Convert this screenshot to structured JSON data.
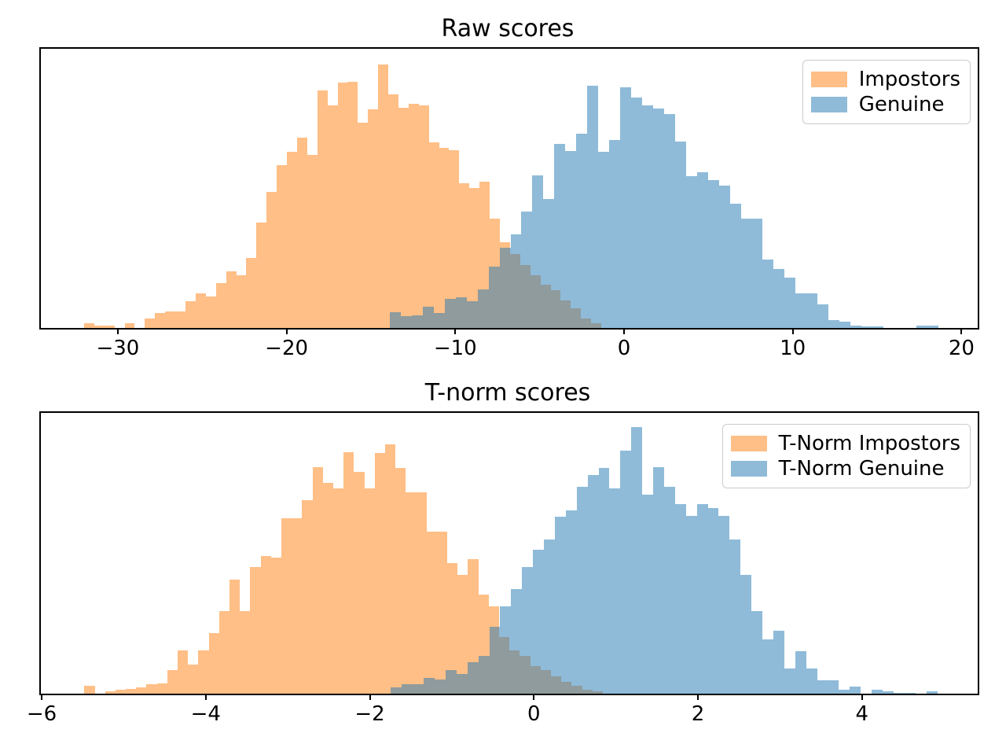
{
  "figure": {
    "background": "#ffffff",
    "spine_color": "#000000",
    "overlap_color_observed": "#8f9b9d",
    "note": "No y-axis ticks are shown; bar heights are stored as fraction of axes height"
  },
  "chart_data": [
    {
      "type": "bar",
      "subtype": "overlapping-histogram",
      "title": "Raw scores",
      "xlabel": "",
      "ylabel": "",
      "xlim": [
        -34.56,
        20.96
      ],
      "grid": false,
      "legend_position": "upper right",
      "xtick_values": [
        -30,
        -20,
        -10,
        0,
        10,
        20
      ],
      "xtick_labels": [
        "−30",
        "−20",
        "−10",
        "0",
        "10",
        "20"
      ],
      "legend": [
        {
          "label": "Impostors",
          "swatch_hex": "#ffbf87"
        },
        {
          "label": "Genuine",
          "swatch_hex": "#8fbbd9"
        }
      ],
      "series": [
        {
          "name": "Impostors",
          "color_hex": "#ff7f0e",
          "alpha": 0.5,
          "fill_rgba": "rgba(255,127,14,0.5)",
          "bin_start": -32.0,
          "bin_width": 0.601,
          "heights_frac": [
            0.017,
            0.008,
            0.008,
            0,
            0.017,
            0,
            0.034,
            0.053,
            0.059,
            0.059,
            0.095,
            0.123,
            0.112,
            0.16,
            0.204,
            0.19,
            0.252,
            0.378,
            0.487,
            0.583,
            0.63,
            0.683,
            0.619,
            0.852,
            0.798,
            0.88,
            0.882,
            0.734,
            0.784,
            0.944,
            0.838,
            0.79,
            0.804,
            0.798,
            0.664,
            0.644,
            0.636,
            0.518,
            0.501,
            0.524,
            0.392,
            0.308,
            0.266,
            0.224,
            0.19,
            0.154,
            0.134,
            0.098,
            0.07,
            0.034,
            0.017
          ]
        },
        {
          "name": "Genuine",
          "color_hex": "#1f77b4",
          "alpha": 0.5,
          "fill_rgba": "rgba(31,119,180,0.5)",
          "bin_start": -13.88,
          "bin_width": 0.65,
          "heights_frac": [
            0.056,
            0.042,
            0.045,
            0.076,
            0.053,
            0.104,
            0.109,
            0.095,
            0.137,
            0.221,
            0.286,
            0.336,
            0.417,
            0.546,
            0.462,
            0.658,
            0.633,
            0.695,
            0.868,
            0.63,
            0.672,
            0.863,
            0.824,
            0.798,
            0.787,
            0.765,
            0.669,
            0.543,
            0.557,
            0.529,
            0.51,
            0.445,
            0.392,
            0.392,
            0.244,
            0.21,
            0.179,
            0.123,
            0.123,
            0.084,
            0.028,
            0.022,
            0.008,
            0.006,
            0.006,
            0,
            0,
            0,
            0.008,
            0.008
          ]
        }
      ]
    },
    {
      "type": "bar",
      "subtype": "overlapping-histogram",
      "title": "T-norm scores",
      "xlabel": "",
      "ylabel": "",
      "xlim": [
        -6.01,
        5.41
      ],
      "grid": false,
      "legend_position": "upper right",
      "xtick_values": [
        -6,
        -4,
        -2,
        0,
        2,
        4
      ],
      "xtick_labels": [
        "−6",
        "−4",
        "−2",
        "0",
        "2",
        "4"
      ],
      "legend": [
        {
          "label": "T-Norm Impostors",
          "swatch_hex": "#ffbf87"
        },
        {
          "label": "T-Norm Genuine",
          "swatch_hex": "#8fbbd9"
        }
      ],
      "series": [
        {
          "name": "T-Norm Impostors",
          "color_hex": "#ff7f0e",
          "alpha": 0.5,
          "fill_rgba": "rgba(255,127,14,0.5)",
          "bin_start": -5.48,
          "bin_width": 0.1264,
          "heights_frac": [
            0.028,
            0,
            0.008,
            0.014,
            0.017,
            0.023,
            0.034,
            0.037,
            0.085,
            0.155,
            0.104,
            0.155,
            0.217,
            0.293,
            0.406,
            0.293,
            0.451,
            0.49,
            0.485,
            0.625,
            0.625,
            0.69,
            0.808,
            0.752,
            0.73,
            0.859,
            0.789,
            0.73,
            0.856,
            0.887,
            0.803,
            0.718,
            0.718,
            0.577,
            0.577,
            0.465,
            0.423,
            0.479,
            0.352,
            0.31,
            0.203,
            0.155,
            0.135,
            0.099,
            0.085,
            0.062,
            0.042,
            0.028,
            0.014,
            0.008
          ]
        },
        {
          "name": "T-Norm Genuine",
          "color_hex": "#1f77b4",
          "alpha": 0.5,
          "fill_rgba": "rgba(31,119,180,0.5)",
          "bin_start": -1.743,
          "bin_width": 0.1332,
          "heights_frac": [
            0.023,
            0.034,
            0.034,
            0.056,
            0.051,
            0.085,
            0.07,
            0.113,
            0.135,
            0.237,
            0.31,
            0.372,
            0.451,
            0.513,
            0.549,
            0.631,
            0.654,
            0.738,
            0.78,
            0.803,
            0.73,
            0.865,
            0.949,
            0.71,
            0.808,
            0.738,
            0.676,
            0.634,
            0.676,
            0.662,
            0.634,
            0.549,
            0.423,
            0.293,
            0.194,
            0.223,
            0.09,
            0.152,
            0.09,
            0.048,
            0.048,
            0.014,
            0.025,
            0,
            0.014,
            0.008,
            0.003,
            0.003,
            0,
            0.008
          ]
        }
      ]
    }
  ]
}
